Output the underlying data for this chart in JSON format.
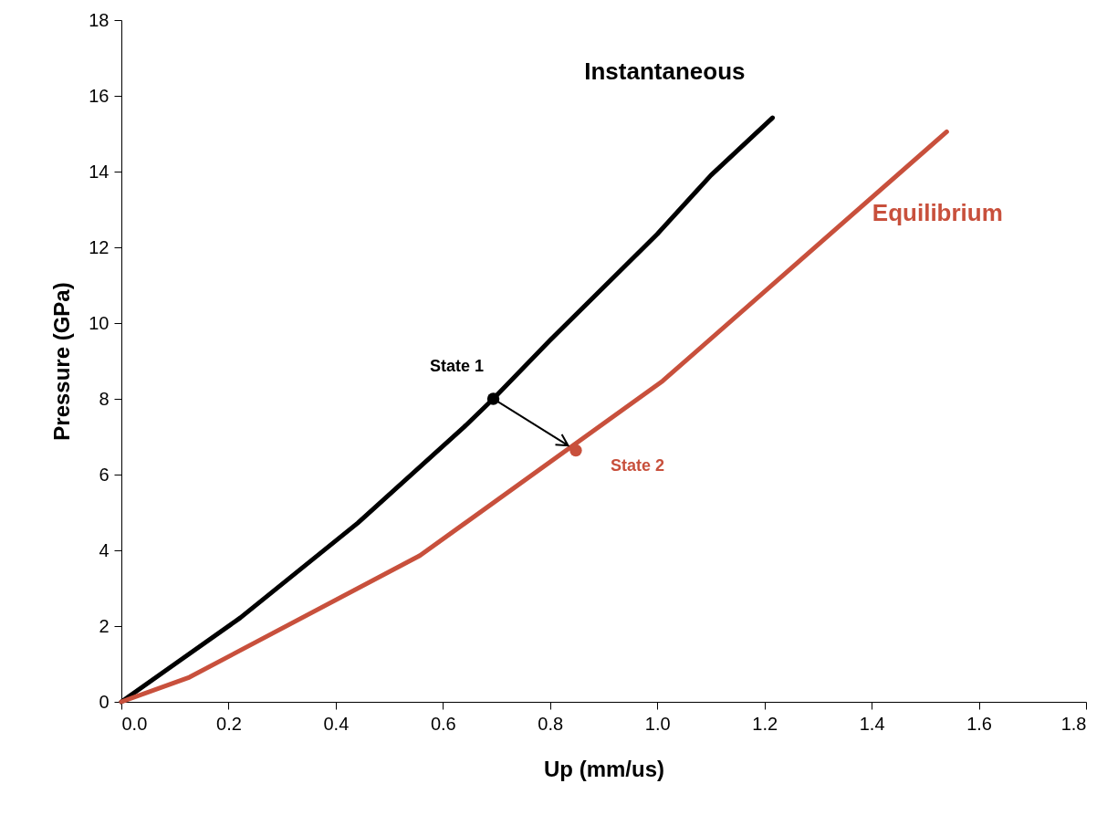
{
  "chart_data": {
    "type": "line",
    "xlabel": "Up (mm/us)",
    "ylabel": "Pressure (GPa)",
    "xlim": [
      0,
      1.8
    ],
    "ylim": [
      0,
      18
    ],
    "xticks": [
      {
        "value": 0,
        "label": "0.0"
      },
      {
        "value": 0.2,
        "label": "0.2"
      },
      {
        "value": 0.4,
        "label": "0.4"
      },
      {
        "value": 0.6,
        "label": "0.6"
      },
      {
        "value": 0.8,
        "label": "0.8"
      },
      {
        "value": 1,
        "label": "1.0"
      },
      {
        "value": 1.2,
        "label": "1.2"
      },
      {
        "value": 1.4,
        "label": "1.4"
      },
      {
        "value": 1.6,
        "label": "1.6"
      },
      {
        "value": 1.8,
        "label": "1.8"
      }
    ],
    "yticks": [
      0,
      2,
      4,
      6,
      8,
      10,
      12,
      14,
      16,
      18
    ],
    "grid": false,
    "series": [
      {
        "name": "Instantaneous",
        "color": "#000000",
        "x": [
          0,
          0.1,
          0.222,
          0.441,
          0.639,
          0.694,
          0.8,
          1.0,
          1.1,
          1.215
        ],
        "values": [
          0,
          1.0,
          2.22,
          4.72,
          7.25,
          8.0,
          9.55,
          12.35,
          13.9,
          15.42
        ]
      },
      {
        "name": "Equilibrium",
        "color": "#c8503c",
        "x": [
          0,
          0.127,
          0.557,
          1.01,
          1.54
        ],
        "values": [
          0,
          0.65,
          3.86,
          8.47,
          15.05
        ]
      },
      {
        "name": "State 1",
        "type": "scatter",
        "color": "#000000",
        "x": [
          0.694
        ],
        "values": [
          8.0
        ]
      },
      {
        "name": "State 2",
        "type": "scatter",
        "color": "#c8503c",
        "x": [
          0.848
        ],
        "values": [
          6.64
        ]
      }
    ]
  }
}
